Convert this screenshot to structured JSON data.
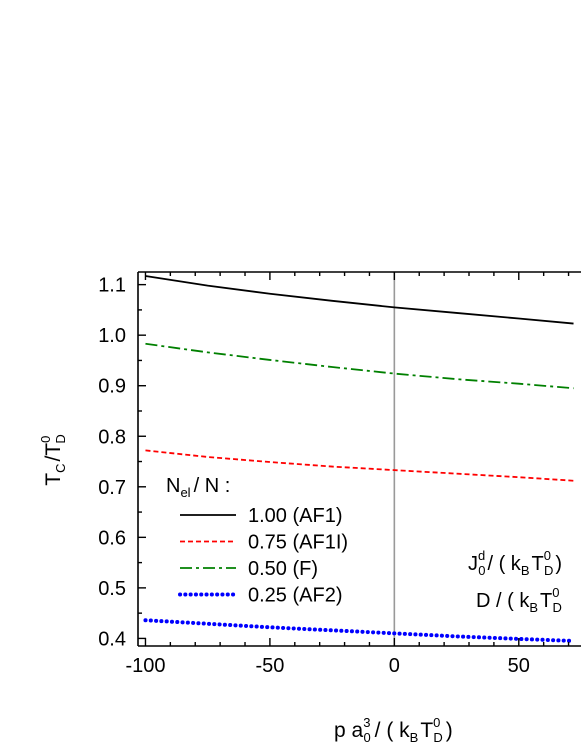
{
  "chart_data": {
    "type": "line",
    "x_range": [
      -103,
      75
    ],
    "y_range": [
      0.385,
      1.125
    ],
    "x_ticks": [
      -100,
      -50,
      0,
      50
    ],
    "x_tick_labels": [
      "-100",
      "-50",
      "0",
      "50"
    ],
    "y_ticks": [
      0.4,
      0.5,
      0.6,
      0.7,
      0.8,
      0.9,
      1.0,
      1.1
    ],
    "y_tick_labels": [
      "0.4",
      "0.5",
      "0.6",
      "0.7",
      "0.8",
      "0.9",
      "1.0",
      "1.1"
    ],
    "reference_line_x": 0,
    "series": [
      {
        "name": "1.00  (AF1)",
        "color": "#000000",
        "style": "solid",
        "x": [
          -100,
          -75,
          -50,
          -25,
          0,
          25,
          50,
          72
        ],
        "y": [
          1.117,
          1.098,
          1.082,
          1.068,
          1.055,
          1.044,
          1.033,
          1.023
        ]
      },
      {
        "name": "0.75  (AF1I)",
        "color": "#ff0000",
        "style": "dashed",
        "x": [
          -100,
          -75,
          -50,
          -25,
          0,
          25,
          50,
          72
        ],
        "y": [
          0.772,
          0.759,
          0.749,
          0.74,
          0.733,
          0.726,
          0.719,
          0.712
        ]
      },
      {
        "name": "0.50  (F)",
        "color": "#008000",
        "style": "dashdot",
        "x": [
          -100,
          -75,
          -50,
          -25,
          0,
          25,
          50,
          72
        ],
        "y": [
          0.983,
          0.966,
          0.951,
          0.937,
          0.924,
          0.913,
          0.904,
          0.895
        ]
      },
      {
        "name": "0.25  (AF2)",
        "color": "#0000ff",
        "style": "dotted",
        "x": [
          -100,
          -75,
          -50,
          -25,
          0,
          25,
          50,
          72
        ],
        "y": [
          0.436,
          0.429,
          0.422,
          0.416,
          0.41,
          0.404,
          0.399,
          0.395
        ]
      }
    ],
    "legend": {
      "title_main": "N",
      "title_sub": "el",
      "title_rest": "/ N :",
      "placement": "lower-left"
    },
    "ylabel": {
      "a": "T",
      "a_sub": "C",
      "b": "/T",
      "b_sup": "0",
      "b_sub": "D"
    },
    "xlabel": {
      "a": "p a",
      "a_sup": "3",
      "a_sub": "0",
      "b": "/ ( k",
      "b_sub": "B",
      "c": "T",
      "c_sup": "0",
      "c_sub": "D",
      "d": ")"
    },
    "annotation_1": {
      "a": "J",
      "a_sup": "d",
      "a_sub": "0",
      "b": "/ ( k",
      "b_sub": "B",
      "c": "T",
      "c_sup": "0",
      "c_sub": "D",
      "d": ")"
    },
    "annotation_2": {
      "a": "D / ( k",
      "a_sub": "B",
      "b": "T",
      "b_sup": "0",
      "b_sub": "D"
    }
  }
}
